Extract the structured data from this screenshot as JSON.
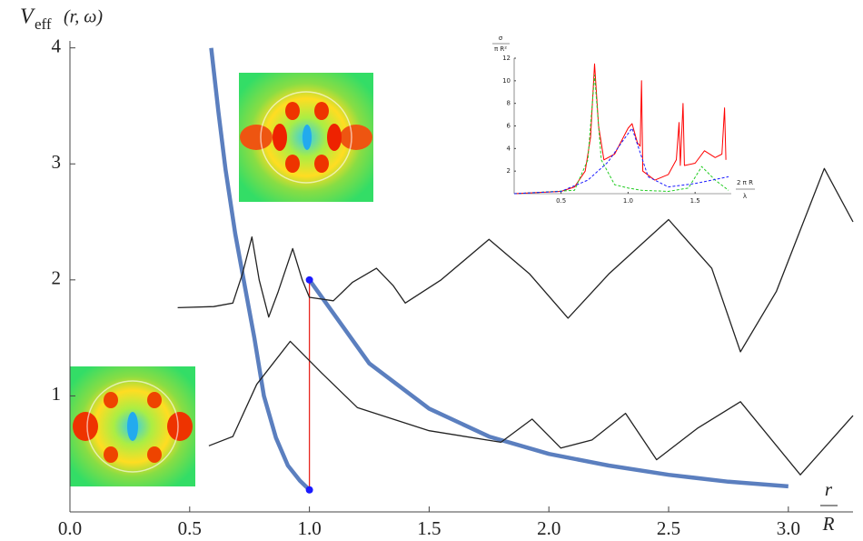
{
  "chart_data": [
    {
      "type": "line",
      "y_label": {
        "symbol": "V",
        "subscript": "eff",
        "args": "(r, ω)"
      },
      "x_label": {
        "numerator": "r",
        "denominator": "R"
      },
      "xlim": [
        0,
        3.27
      ],
      "ylim": [
        0,
        4.06
      ],
      "xticks": [
        {
          "value": 0,
          "label": "0.0"
        },
        0.5,
        {
          "value": 1,
          "label": "1.0"
        },
        1.5,
        {
          "value": 2,
          "label": "2.0"
        },
        2.5,
        {
          "value": 3,
          "label": "3.0"
        }
      ],
      "yticks": [
        1,
        2,
        3,
        4
      ],
      "series": [
        {
          "color": "#5b7fbf",
          "style": "thick",
          "x": [
            0.59,
            0.62,
            0.65,
            0.69,
            0.73,
            0.77,
            0.81,
            0.86,
            0.91,
            0.96,
            1.0
          ],
          "values": [
            4.0,
            3.45,
            2.95,
            2.4,
            1.95,
            1.5,
            1.0,
            0.64,
            0.4,
            0.27,
            0.19
          ]
        },
        {
          "color": "#5b7fbf",
          "style": "thick",
          "x": [
            1.0,
            1.25,
            1.5,
            1.75,
            2.0,
            2.25,
            2.5,
            2.75,
            3.0
          ],
          "values": [
            2.0,
            1.28,
            0.89,
            0.65,
            0.5,
            0.4,
            0.32,
            0.26,
            0.22
          ]
        },
        {
          "color": "#e8271f",
          "style": "thin",
          "x": [
            1.0,
            1.0
          ],
          "values": [
            0.19,
            2.0
          ]
        },
        {
          "color": "#1a1aff",
          "style": "dots",
          "x": [
            1.0,
            1.0
          ],
          "values": [
            0.19,
            2.0
          ]
        },
        {
          "color": "#222222",
          "style": "thin",
          "x": [
            0.45,
            0.6,
            0.68,
            0.72,
            0.76,
            0.79,
            0.83,
            0.87,
            0.93,
            0.97,
            1.0,
            1.1,
            1.18,
            1.28,
            1.35,
            1.4,
            1.55,
            1.75,
            1.92,
            2.08,
            2.25,
            2.5,
            2.68,
            2.8,
            2.95,
            3.15,
            3.27
          ],
          "values": [
            1.76,
            1.77,
            1.8,
            2.05,
            2.37,
            2.0,
            1.68,
            1.9,
            2.27,
            2.0,
            1.85,
            1.82,
            1.98,
            2.1,
            1.95,
            1.8,
            2.0,
            2.35,
            2.05,
            1.67,
            2.05,
            2.52,
            2.1,
            1.38,
            1.9,
            2.96,
            2.5
          ]
        },
        {
          "color": "#222222",
          "style": "thin",
          "x": [
            0.58,
            0.68,
            0.78,
            0.92,
            1.05,
            1.2,
            1.5,
            1.8,
            1.93,
            2.05,
            2.18,
            2.32,
            2.45,
            2.62,
            2.8,
            3.05,
            3.27
          ],
          "values": [
            0.57,
            0.65,
            1.1,
            1.47,
            1.2,
            0.9,
            0.7,
            0.6,
            0.8,
            0.55,
            0.62,
            0.85,
            0.45,
            0.72,
            0.95,
            0.32,
            0.83
          ]
        }
      ]
    },
    {
      "type": "line",
      "y_label": {
        "numerator": "σ",
        "denominator": "π R²"
      },
      "x_label": {
        "numerator": "2 π R",
        "denominator": "λ"
      },
      "xlim": [
        0.15,
        1.77
      ],
      "ylim": [
        0,
        12
      ],
      "xticks": [
        0.5,
        {
          "value": 1,
          "label": "1.0"
        },
        1.5
      ],
      "yticks": [
        2,
        4,
        6,
        8,
        10,
        12
      ],
      "series": [
        {
          "color": "#ff0000",
          "dash": false,
          "x": [
            0.15,
            0.5,
            0.6,
            0.68,
            0.72,
            0.75,
            0.78,
            0.82,
            0.9,
            1.0,
            1.03,
            1.07,
            1.09,
            1.1,
            1.11,
            1.2,
            1.3,
            1.36,
            1.38,
            1.39,
            1.41,
            1.42,
            1.5,
            1.57,
            1.65,
            1.7,
            1.72,
            1.73
          ],
          "values": [
            0,
            0.2,
            0.6,
            2,
            5,
            11.5,
            6,
            3,
            3.5,
            5.8,
            6.2,
            4.5,
            4.2,
            10,
            2,
            1.2,
            1.7,
            3,
            6.3,
            2.5,
            8,
            2.5,
            2.7,
            3.8,
            3.2,
            3.5,
            7.6,
            3
          ]
        },
        {
          "color": "#22cc22",
          "dash": true,
          "x": [
            0.15,
            0.6,
            0.7,
            0.75,
            0.8,
            0.9,
            1.0,
            1.1,
            1.3,
            1.45,
            1.55,
            1.65,
            1.75
          ],
          "values": [
            0,
            0.3,
            3,
            10.5,
            3,
            0.8,
            0.5,
            0.3,
            0.2,
            0.5,
            2.4,
            1.2,
            0.3
          ]
        },
        {
          "color": "#1a1aff",
          "dash": true,
          "x": [
            0.15,
            0.5,
            0.7,
            0.85,
            0.95,
            1.03,
            1.08,
            1.15,
            1.3,
            1.5,
            1.75
          ],
          "values": [
            0,
            0.2,
            1.2,
            2.8,
            4.5,
            5.8,
            4.0,
            1.5,
            0.6,
            0.9,
            1.5
          ]
        }
      ]
    }
  ]
}
